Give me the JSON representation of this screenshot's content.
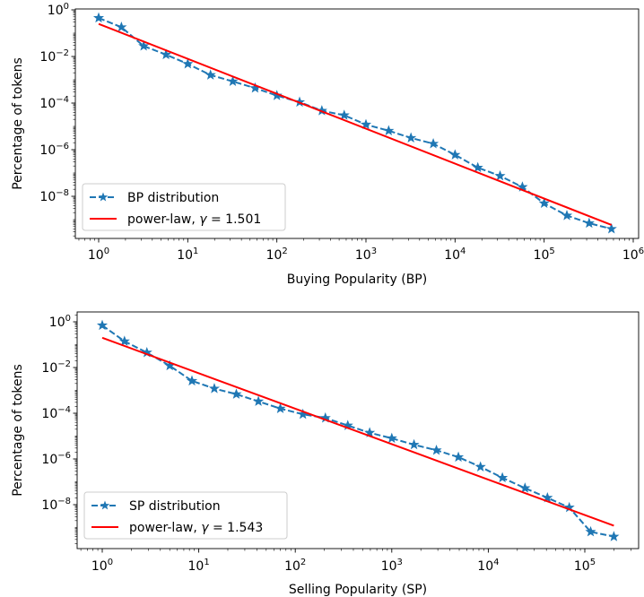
{
  "chart_data": [
    {
      "type": "line",
      "xscale": "log",
      "yscale": "log",
      "xlabel": "Buying Popularity (BP)",
      "ylabel": "Percentage of tokens",
      "xlim": [
        0.55,
        1100000
      ],
      "ylim": [
        1e-09,
        1
      ],
      "xticks": [
        {
          "value": 1,
          "base": "10",
          "exp": "0"
        },
        {
          "value": 10,
          "base": "10",
          "exp": "1"
        },
        {
          "value": 100,
          "base": "10",
          "exp": "2"
        },
        {
          "value": 1000,
          "base": "10",
          "exp": "3"
        },
        {
          "value": 10000,
          "base": "10",
          "exp": "4"
        },
        {
          "value": 100000,
          "base": "10",
          "exp": "5"
        },
        {
          "value": 1000000,
          "base": "10",
          "exp": "6"
        }
      ],
      "yticks": [
        {
          "value": 1,
          "base": "10",
          "exp": "0"
        },
        {
          "value": 0.01,
          "base": "10",
          "exp": "−2"
        },
        {
          "value": 0.0001,
          "base": "10",
          "exp": "−4"
        },
        {
          "value": 1e-06,
          "base": "10",
          "exp": "−6"
        },
        {
          "value": 1e-08,
          "base": "10",
          "exp": "−8"
        }
      ],
      "legend_position": "lower-left",
      "series": [
        {
          "name": "BP distribution",
          "style": "dashed-star",
          "color": "#1f77b4",
          "x": [
            1,
            1.8,
            3.2,
            5.7,
            10,
            18,
            32,
            57,
            100,
            180,
            320,
            570,
            1000,
            1800,
            3200,
            5700,
            10000,
            18000,
            32000,
            57000,
            100000,
            180000,
            320000,
            570000
          ],
          "y": [
            0.45,
            0.18,
            0.028,
            0.012,
            0.0048,
            0.0016,
            0.00085,
            0.00044,
            0.00021,
            0.00011,
            4.7e-05,
            3e-05,
            1.2e-05,
            6.5e-06,
            3.2e-06,
            1.8e-06,
            6e-07,
            1.7e-07,
            7.5e-08,
            2.5e-08,
            5e-09,
            1.5e-09,
            7e-10,
            4e-10
          ]
        },
        {
          "name": "power-law, γ = 1.501",
          "name_prefix": "power-law, ",
          "name_symbol": "γ",
          "name_suffix": " = 1.501",
          "style": "solid",
          "color": "#ff0000",
          "x": [
            1,
            570000
          ],
          "y": [
            0.25,
            5.9e-10
          ]
        }
      ]
    },
    {
      "type": "line",
      "xscale": "log",
      "yscale": "log",
      "xlabel": "Selling Popularity (SP)",
      "ylabel": "Percentage of tokens",
      "xlim": [
        0.6,
        330000
      ],
      "ylim": [
        1e-09,
        1
      ],
      "xticks": [
        {
          "value": 1,
          "base": "10",
          "exp": "0"
        },
        {
          "value": 10,
          "base": "10",
          "exp": "1"
        },
        {
          "value": 100,
          "base": "10",
          "exp": "2"
        },
        {
          "value": 1000,
          "base": "10",
          "exp": "3"
        },
        {
          "value": 10000,
          "base": "10",
          "exp": "4"
        },
        {
          "value": 100000,
          "base": "10",
          "exp": "5"
        }
      ],
      "yticks": [
        {
          "value": 1,
          "base": "10",
          "exp": "0"
        },
        {
          "value": 0.01,
          "base": "10",
          "exp": "−2"
        },
        {
          "value": 0.0001,
          "base": "10",
          "exp": "−4"
        },
        {
          "value": 1e-06,
          "base": "10",
          "exp": "−6"
        },
        {
          "value": 1e-08,
          "base": "10",
          "exp": "−8"
        }
      ],
      "legend_position": "lower-left",
      "series": [
        {
          "name": "SP distribution",
          "style": "dashed-star",
          "color": "#1f77b4",
          "x": [
            1,
            1.7,
            2.9,
            5,
            8.5,
            14.5,
            24.5,
            41.5,
            70,
            120,
            205,
            350,
            590,
            1000,
            1700,
            2900,
            4900,
            8300,
            14000,
            24000,
            41000,
            69000,
            115000,
            200000
          ],
          "y": [
            0.7,
            0.14,
            0.045,
            0.012,
            0.0026,
            0.0012,
            0.00068,
            0.00033,
            0.00016,
            9e-05,
            6.2e-05,
            2.9e-05,
            1.4e-05,
            8e-06,
            4.2e-06,
            2.4e-06,
            1.2e-06,
            4.5e-07,
            1.5e-07,
            5.3e-08,
            2e-08,
            7.5e-09,
            6.5e-10,
            4e-10
          ]
        },
        {
          "name": "power-law, γ = 1.543",
          "name_prefix": "power-law, ",
          "name_symbol": "γ",
          "name_suffix": " = 1.543",
          "style": "solid",
          "color": "#ff0000",
          "x": [
            1,
            200000
          ],
          "y": [
            0.2,
            1.2e-09
          ]
        }
      ]
    }
  ]
}
